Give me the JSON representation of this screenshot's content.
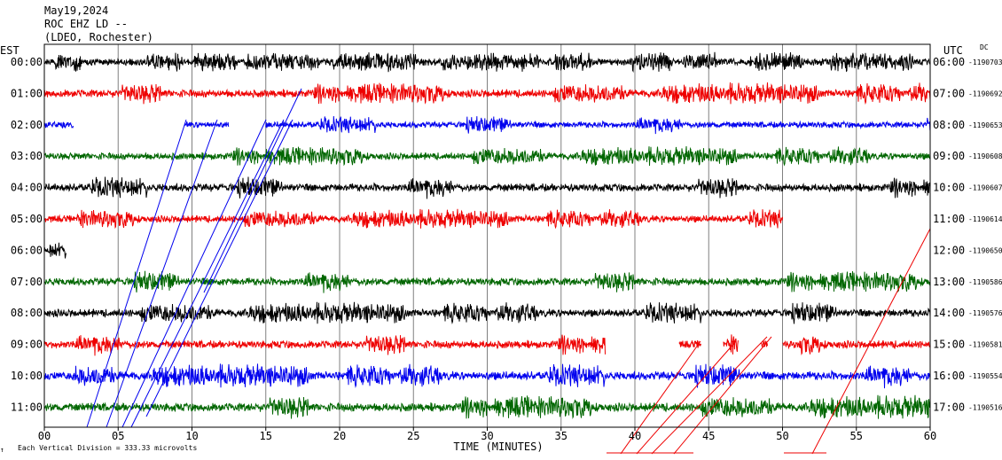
{
  "header": {
    "date": "May19,2024",
    "station": "ROC EHZ LD --",
    "network": "(LDEO, Rochester)",
    "left_zone": "EST",
    "right_zone": "UTC",
    "dc_label": "DC"
  },
  "footer": {
    "note": "Each Vertical Division = 333.33 microvolts",
    "corner_mark": "↑"
  },
  "colors": {
    "cycle": [
      "#000000",
      "#ee0000",
      "#0000ee",
      "#006600"
    ],
    "frame": "#000000",
    "grid": "#808080"
  },
  "chart_data": {
    "type": "line",
    "title": "",
    "xlabel": "TIME (MINUTES)",
    "ylabel": "",
    "xlim": [
      0,
      60
    ],
    "x_ticks": [
      "00",
      "05",
      "10",
      "15",
      "20",
      "25",
      "30",
      "35",
      "40",
      "45",
      "50",
      "55",
      "60"
    ],
    "grid": true,
    "rows": [
      {
        "est": "00:00",
        "utc": "06:00",
        "dc": "-1190703",
        "color": "#000000",
        "amp": 0.9,
        "span": [
          [
            0,
            60
          ]
        ]
      },
      {
        "est": "01:00",
        "utc": "07:00",
        "dc": "-1190692",
        "color": "#ee0000",
        "amp": 1.0,
        "span": [
          [
            0,
            60
          ]
        ]
      },
      {
        "est": "02:00",
        "utc": "08:00",
        "dc": "-1190653",
        "color": "#0000ee",
        "amp": 0.8,
        "span": [
          [
            0,
            2
          ],
          [
            9.5,
            12.5
          ],
          [
            15,
            60
          ]
        ]
      },
      {
        "est": "03:00",
        "utc": "09:00",
        "dc": "-1190608",
        "color": "#006600",
        "amp": 0.9,
        "span": [
          [
            0,
            60
          ]
        ]
      },
      {
        "est": "04:00",
        "utc": "10:00",
        "dc": "-1190607",
        "color": "#000000",
        "amp": 1.0,
        "span": [
          [
            0,
            60
          ]
        ]
      },
      {
        "est": "05:00",
        "utc": "11:00",
        "dc": "-1190614",
        "color": "#ee0000",
        "amp": 0.9,
        "span": [
          [
            0,
            50
          ]
        ]
      },
      {
        "est": "06:00",
        "utc": "12:00",
        "dc": "-1190650",
        "color": "#000000",
        "amp": 0.8,
        "span": [
          [
            0,
            1.5
          ]
        ]
      },
      {
        "est": "07:00",
        "utc": "13:00",
        "dc": "-1190586",
        "color": "#006600",
        "amp": 1.0,
        "span": [
          [
            0,
            60
          ]
        ]
      },
      {
        "est": "08:00",
        "utc": "14:00",
        "dc": "-1190576",
        "color": "#000000",
        "amp": 1.0,
        "span": [
          [
            0,
            60
          ]
        ]
      },
      {
        "est": "09:00",
        "utc": "15:00",
        "dc": "-1190581",
        "color": "#ee0000",
        "amp": 1.0,
        "span": [
          [
            0,
            38
          ],
          [
            43,
            44.5
          ],
          [
            46,
            47
          ],
          [
            48.5,
            49
          ],
          [
            50,
            60
          ]
        ]
      },
      {
        "est": "10:00",
        "utc": "16:00",
        "dc": "-1190554",
        "color": "#0000ee",
        "amp": 1.1,
        "span": [
          [
            0,
            60
          ]
        ]
      },
      {
        "est": "11:00",
        "utc": "17:00",
        "dc": "-1190516",
        "color": "#006600",
        "amp": 1.1,
        "span": [
          [
            0,
            60
          ]
        ]
      }
    ]
  }
}
